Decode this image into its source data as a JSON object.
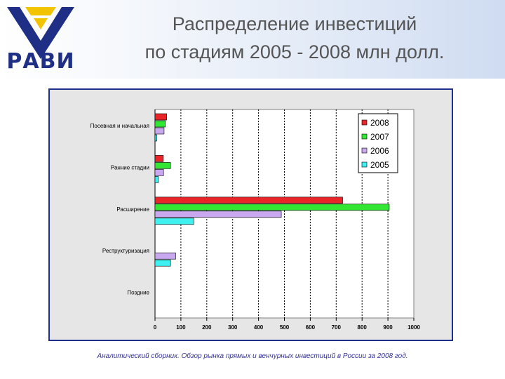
{
  "logo": {
    "text": "РАВИ"
  },
  "title": {
    "line1": "Распределение инвестиций",
    "line2": "по стадиям 2005 - 2008 млн долл."
  },
  "source": "Аналитический сборник. Обзор рынка прямых и венчурных инвестиций в России за 2008 год.",
  "colors": {
    "accent": "#1e2f8c",
    "2008": "#e8262a",
    "2007": "#33e633",
    "2006": "#c9a8f0",
    "2005": "#3ff0f0"
  },
  "chart_data": {
    "type": "bar",
    "orientation": "horizontal",
    "categories": [
      "Посевная и начальная",
      "Ранние стадии",
      "Расширение",
      "Реструктуризация",
      "Поздние"
    ],
    "series": [
      {
        "name": "2008",
        "color": "#e8262a",
        "values": [
          45,
          32,
          725,
          null,
          null
        ]
      },
      {
        "name": "2007",
        "color": "#33e633",
        "values": [
          40,
          60,
          905,
          null,
          null
        ]
      },
      {
        "name": "2006",
        "color": "#c9a8f0",
        "values": [
          35,
          33,
          488,
          80,
          null
        ]
      },
      {
        "name": "2005",
        "color": "#3ff0f0",
        "values": [
          7,
          13,
          150,
          60,
          null
        ]
      }
    ],
    "xlim": [
      0,
      1000
    ],
    "xticks": [
      "0",
      "100",
      "200",
      "300",
      "400",
      "500",
      "600",
      "700",
      "800",
      "900",
      "1000"
    ],
    "grid": "vertical dashed",
    "legend": "top-right"
  }
}
